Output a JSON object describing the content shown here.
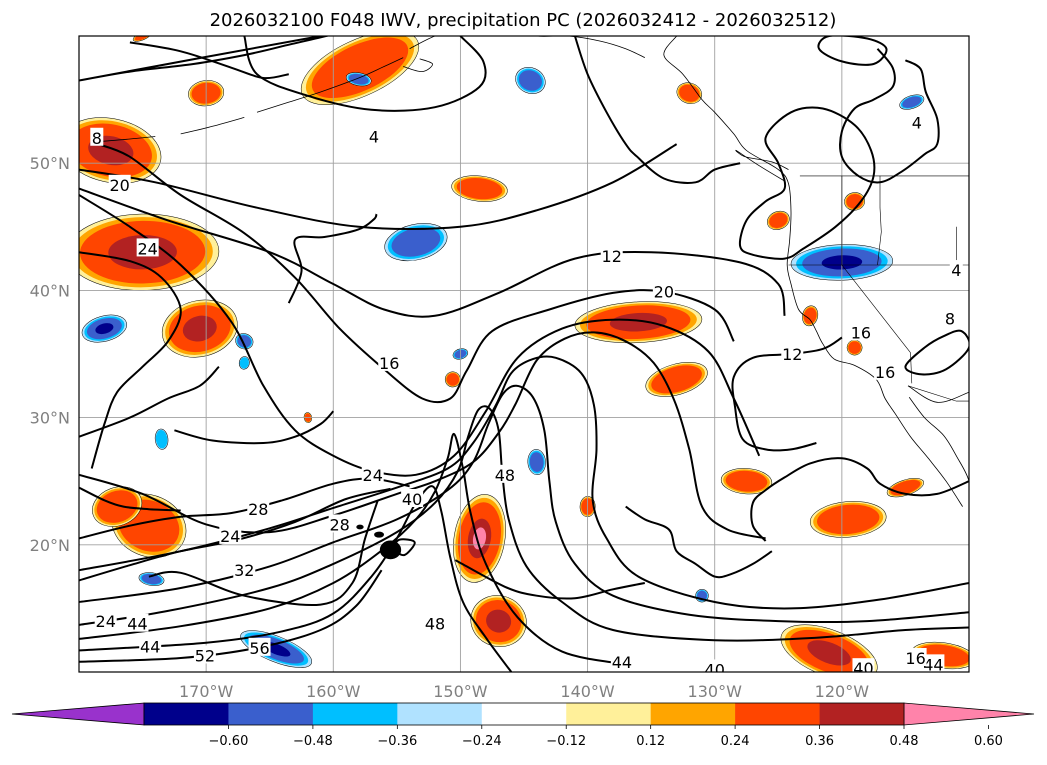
{
  "chart_data": {
    "type": "heatmap",
    "title": "2026032100 F048 IWV, precipitation PC (2026032412 - 2026032512)",
    "map": {
      "lon_range": [
        -180,
        -110
      ],
      "lat_range": [
        10,
        60
      ],
      "lon_ticks": [
        {
          "value": -170,
          "label": "170°W"
        },
        {
          "value": -160,
          "label": "160°W"
        },
        {
          "value": -150,
          "label": "150°W"
        },
        {
          "value": -140,
          "label": "140°W"
        },
        {
          "value": -130,
          "label": "130°W"
        },
        {
          "value": -120,
          "label": "120°W"
        }
      ],
      "lat_ticks": [
        {
          "value": 50,
          "label": "50°N"
        },
        {
          "value": 40,
          "label": "40°N"
        },
        {
          "value": 30,
          "label": "30°N"
        },
        {
          "value": 20,
          "label": "20°N"
        }
      ],
      "grid": true
    },
    "contour_labels": [
      {
        "text": "4",
        "lon": -156.8,
        "lat": 52.1
      },
      {
        "text": "4",
        "lon": -114.1,
        "lat": 53.2
      },
      {
        "text": "4",
        "lon": -111.0,
        "lat": 41.6
      },
      {
        "text": "8",
        "lon": -178.6,
        "lat": 52.0
      },
      {
        "text": "8",
        "lon": -111.5,
        "lat": 37.8
      },
      {
        "text": "12",
        "lon": -138.1,
        "lat": 42.7
      },
      {
        "text": "12",
        "lon": -123.9,
        "lat": 35.0
      },
      {
        "text": "16",
        "lon": -155.6,
        "lat": 34.3
      },
      {
        "text": "16",
        "lon": -118.5,
        "lat": 36.7
      },
      {
        "text": "16",
        "lon": -116.6,
        "lat": 33.6
      },
      {
        "text": "20",
        "lon": -176.8,
        "lat": 48.3
      },
      {
        "text": "20",
        "lon": -134.0,
        "lat": 39.9
      },
      {
        "text": "24",
        "lon": -174.6,
        "lat": 43.3
      },
      {
        "text": "24",
        "lon": -156.9,
        "lat": 25.5
      },
      {
        "text": "24",
        "lon": -168.1,
        "lat": 20.7
      },
      {
        "text": "24",
        "lon": -177.9,
        "lat": 14.0
      },
      {
        "text": "28",
        "lon": -165.9,
        "lat": 22.8
      },
      {
        "text": "28",
        "lon": -159.5,
        "lat": 21.6
      },
      {
        "text": "32",
        "lon": -167.0,
        "lat": 18.0
      },
      {
        "text": "40",
        "lon": -153.8,
        "lat": 23.6
      },
      {
        "text": "44",
        "lon": -175.4,
        "lat": 13.8
      },
      {
        "text": "44",
        "lon": -174.4,
        "lat": 12.0
      },
      {
        "text": "44",
        "lon": -137.3,
        "lat": 10.8
      },
      {
        "text": "44",
        "lon": -112.8,
        "lat": 10.6
      },
      {
        "text": "40",
        "lon": -130.0,
        "lat": 10.2
      },
      {
        "text": "40",
        "lon": -118.3,
        "lat": 10.3
      },
      {
        "text": "48",
        "lon": -146.5,
        "lat": 25.5
      },
      {
        "text": "48",
        "lon": -152.0,
        "lat": 13.8
      },
      {
        "text": "52",
        "lon": -170.1,
        "lat": 11.3
      },
      {
        "text": "56",
        "lon": -165.8,
        "lat": 11.9
      },
      {
        "text": "16",
        "lon": -114.2,
        "lat": 11.1
      }
    ],
    "colorbar": {
      "ticks": [
        "−0.60",
        "−0.48",
        "−0.36",
        "−0.24",
        "−0.12",
        "0.12",
        "0.24",
        "0.36",
        "0.48",
        "0.60"
      ],
      "colors": [
        "#9932cc",
        "#00008b",
        "#3a5fcd",
        "#00bfff",
        "#b0e2ff",
        "#ffffff",
        "#fff09a",
        "#ffa500",
        "#ff4500",
        "#b22222",
        "#ff83aa"
      ],
      "extend": "both"
    },
    "pc_colors": {
      "neg_strong": "#00008b",
      "neg_mid": "#3a5fcd",
      "neg_weak": "#00bfff",
      "pos_weak": "#ffa500",
      "pos_mid": "#ff4500",
      "pos_strong": "#b22222",
      "pos_max": "#ff83aa"
    }
  }
}
